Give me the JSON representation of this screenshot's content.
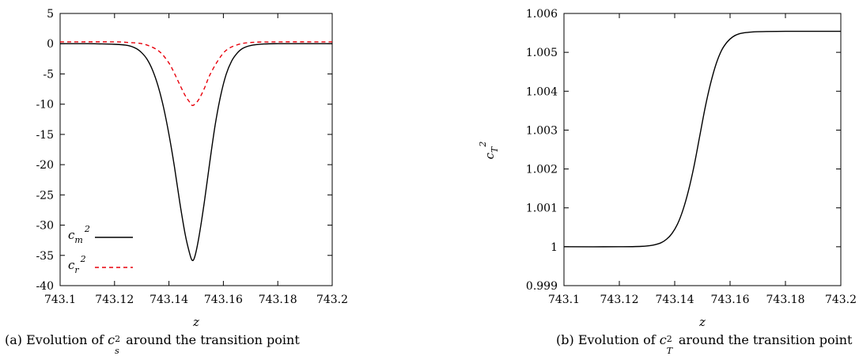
{
  "chart_data": [
    {
      "type": "line",
      "xlabel": "z",
      "ylabel": "",
      "xlim": [
        743.1,
        743.2
      ],
      "ylim": [
        -40,
        5
      ],
      "xticks": [
        "743.1",
        "743.12",
        "743.14",
        "743.16",
        "743.18",
        "743.2"
      ],
      "yticks": [
        "5",
        "0",
        "-5",
        "-10",
        "-15",
        "-20",
        "-25",
        "-30",
        "-35",
        "-40"
      ],
      "legend_position": "bottom-left",
      "grid": false,
      "series": [
        {
          "name": "c_m^2",
          "legend_base": "c",
          "legend_sub": "m",
          "legend_sup": "2",
          "color": "#000000",
          "dash": "solid",
          "x": [
            743.1,
            743.11,
            743.12,
            743.125,
            743.128,
            743.13,
            743.132,
            743.134,
            743.136,
            743.138,
            743.14,
            743.142,
            743.144,
            743.146,
            743.1475,
            743.1485,
            743.1495,
            743.151,
            743.153,
            743.155,
            743.157,
            743.159,
            743.161,
            743.163,
            743.165,
            743.167,
            743.17,
            743.175,
            743.18,
            743.19,
            743.2
          ],
          "y": [
            0.0,
            0.0,
            -0.1,
            -0.3,
            -0.8,
            -1.5,
            -2.6,
            -4.4,
            -7.0,
            -10.5,
            -15.0,
            -20.3,
            -26.3,
            -31.6,
            -34.5,
            -35.8,
            -35.2,
            -32.0,
            -26.2,
            -19.6,
            -13.4,
            -8.6,
            -5.1,
            -2.9,
            -1.6,
            -0.8,
            -0.3,
            -0.05,
            0.0,
            0.0,
            0.0
          ]
        },
        {
          "name": "c_r^2",
          "legend_base": "c",
          "legend_sub": "r",
          "legend_sup": "2",
          "color": "#e8000b",
          "dash": "dashed",
          "x": [
            743.1,
            743.12,
            743.125,
            743.13,
            743.134,
            743.137,
            743.14,
            743.142,
            743.144,
            743.146,
            743.1475,
            743.1485,
            743.1495,
            743.151,
            743.153,
            743.155,
            743.158,
            743.161,
            743.165,
            743.17,
            743.18,
            743.2
          ],
          "y": [
            0.3,
            0.3,
            0.2,
            0.0,
            -0.6,
            -1.5,
            -3.2,
            -4.9,
            -6.8,
            -8.6,
            -9.6,
            -10.2,
            -10.0,
            -9.2,
            -7.4,
            -5.2,
            -2.8,
            -1.1,
            -0.2,
            0.2,
            0.3,
            0.3
          ]
        }
      ],
      "caption_prefix": "(a) Evolution of ",
      "caption_base": "c",
      "caption_sub": "s",
      "caption_sup": "2",
      "caption_suffix": " around the transition point"
    },
    {
      "type": "line",
      "xlabel": "z",
      "ylabel_base": "c",
      "ylabel_sub": "T",
      "ylabel_sup": "2",
      "xlim": [
        743.1,
        743.2
      ],
      "ylim": [
        0.999,
        1.006
      ],
      "xticks": [
        "743.1",
        "743.12",
        "743.14",
        "743.16",
        "743.18",
        "743.2"
      ],
      "yticks": [
        "1.006",
        "1.005",
        "1.004",
        "1.003",
        "1.002",
        "1.001",
        "1",
        "0.999"
      ],
      "grid": false,
      "series": [
        {
          "color": "#000000",
          "dash": "solid",
          "x": [
            743.1,
            743.12,
            743.128,
            743.132,
            743.135,
            743.137,
            743.139,
            743.141,
            743.143,
            743.145,
            743.147,
            743.149,
            743.151,
            743.153,
            743.155,
            743.157,
            743.159,
            743.161,
            743.163,
            743.166,
            743.17,
            743.18,
            743.2
          ],
          "y": [
            1.0,
            1.0,
            1.00001,
            1.00004,
            1.0001,
            1.00019,
            1.00034,
            1.00058,
            1.00095,
            1.00145,
            1.00208,
            1.00283,
            1.00358,
            1.00421,
            1.00471,
            1.00506,
            1.00527,
            1.0054,
            1.00547,
            1.00551,
            1.00553,
            1.00554,
            1.00554
          ]
        }
      ],
      "caption_prefix": "(b) Evolution of ",
      "caption_base": "c",
      "caption_sub": "T",
      "caption_sup": "2",
      "caption_suffix": " around the transition point"
    }
  ]
}
